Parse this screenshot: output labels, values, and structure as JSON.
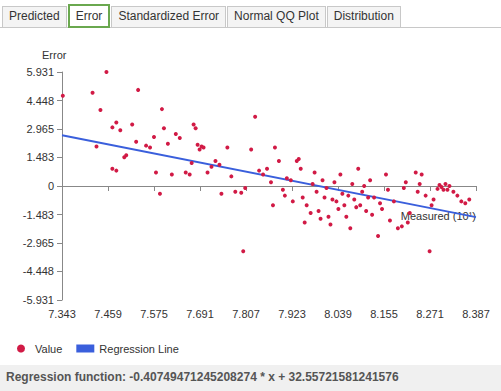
{
  "tabs": [
    "Predicted",
    "Error",
    "Standardized Error",
    "Normal QQ Plot",
    "Distribution"
  ],
  "selected_tab": "Error",
  "footer": "Regression function: -0.40749471245208274 * x + 32.55721581241576",
  "chart_data": {
    "type": "scatter",
    "y_label": "Error",
    "x_label": "Measured (10¹)",
    "xlim": [
      7.343,
      8.387
    ],
    "xticks": [
      7.343,
      7.459,
      7.575,
      7.691,
      7.807,
      7.923,
      8.039,
      8.155,
      8.271,
      8.387
    ],
    "ylim": [
      -5.931,
      5.931
    ],
    "yticks": [
      -5.931,
      -4.448,
      -2.965,
      -1.483,
      0,
      1.483,
      2.965,
      4.448,
      5.931
    ],
    "grid": false,
    "legend": "bottom-left",
    "series": [
      {
        "name": "Value",
        "type": "scatter",
        "color": "#d11a45",
        "marker": "circle",
        "x": [
          7.345,
          7.42,
          7.455,
          7.44,
          7.43,
          7.47,
          7.48,
          7.49,
          7.5,
          7.505,
          7.48,
          7.47,
          7.52,
          7.53,
          7.535,
          7.555,
          7.565,
          7.575,
          7.58,
          7.59,
          7.595,
          7.6,
          7.61,
          7.62,
          7.63,
          7.64,
          7.655,
          7.665,
          7.67,
          7.675,
          7.68,
          7.685,
          7.69,
          7.695,
          7.7,
          7.71,
          7.72,
          7.73,
          7.74,
          7.745,
          7.76,
          7.77,
          7.78,
          7.795,
          7.8,
          7.805,
          7.82,
          7.83,
          7.84,
          7.85,
          7.86,
          7.87,
          7.875,
          7.88,
          7.89,
          7.9,
          7.905,
          7.91,
          7.92,
          7.925,
          7.935,
          7.94,
          7.945,
          7.95,
          7.955,
          7.96,
          7.97,
          7.975,
          7.98,
          7.985,
          7.99,
          7.995,
          8,
          8.005,
          8.01,
          8.015,
          8.02,
          8.025,
          8.03,
          8.035,
          8.04,
          8.045,
          8.05,
          8.055,
          8.06,
          8.065,
          8.07,
          8.075,
          8.08,
          8.085,
          8.09,
          8.095,
          8.1,
          8.105,
          8.11,
          8.115,
          8.12,
          8.125,
          8.13,
          8.14,
          8.145,
          8.15,
          8.16,
          8.165,
          8.17,
          8.18,
          8.19,
          8.2,
          8.205,
          8.21,
          8.215,
          8.22,
          8.235,
          8.24,
          8.245,
          8.25,
          8.26,
          8.27,
          8.275,
          8.28,
          8.29,
          8.295,
          8.3,
          8.305,
          8.31,
          8.315,
          8.32,
          8.33,
          8.34,
          8.35,
          8.36,
          8.37
        ],
        "values": [
          4.7,
          4.85,
          5.93,
          3.95,
          2.05,
          3.05,
          3.3,
          2.9,
          1.5,
          1.6,
          0.8,
          0.9,
          3.2,
          2.3,
          5.0,
          2.1,
          2.0,
          2.55,
          0.7,
          -0.4,
          4.0,
          3.0,
          2.2,
          0.6,
          2.7,
          2.5,
          0.7,
          0.6,
          1.2,
          3.2,
          3.0,
          2.15,
          1.9,
          2.05,
          2.0,
          0.7,
          1.0,
          1.3,
          1.1,
          -0.4,
          2.0,
          0.5,
          -0.3,
          -0.35,
          -3.4,
          -0.1,
          1.9,
          3.6,
          0.8,
          0.6,
          0.9,
          0.2,
          -1.0,
          2.0,
          1.3,
          -0.2,
          -0.5,
          0.4,
          0.3,
          -0.8,
          1.3,
          1.4,
          0.9,
          -0.6,
          -1.9,
          -1.0,
          -1.4,
          0.1,
          0.7,
          -0.3,
          -1.3,
          -1.7,
          0.3,
          -0.6,
          -0.1,
          -1.6,
          -2.0,
          -0.7,
          0.2,
          -0.8,
          -1.2,
          0.6,
          -0.4,
          -1.0,
          -1.6,
          -0.5,
          -2.2,
          0.1,
          -0.7,
          -1.1,
          0.9,
          -1.0,
          -0.3,
          0.0,
          -1.3,
          -0.6,
          0.3,
          -1.5,
          -0.6,
          -2.6,
          -0.9,
          -1.2,
          0.6,
          -0.2,
          -1.8,
          -0.8,
          -2.2,
          -2.1,
          -0.1,
          0.2,
          -1.9,
          -1.4,
          0.7,
          -0.3,
          0.1,
          0.6,
          -0.5,
          -3.4,
          -1.0,
          -0.7,
          -0.15,
          0.05,
          -0.05,
          -0.2,
          0.1,
          -0.2,
          0.0,
          -0.3,
          -0.5,
          -0.8,
          -0.9,
          -0.7
        ]
      },
      {
        "name": "Regression Line",
        "type": "line",
        "color": "#3a5fdc",
        "line_style": "solid",
        "x": [
          7.343,
          8.387
        ],
        "values": [
          2.635,
          -1.619
        ]
      }
    ]
  }
}
